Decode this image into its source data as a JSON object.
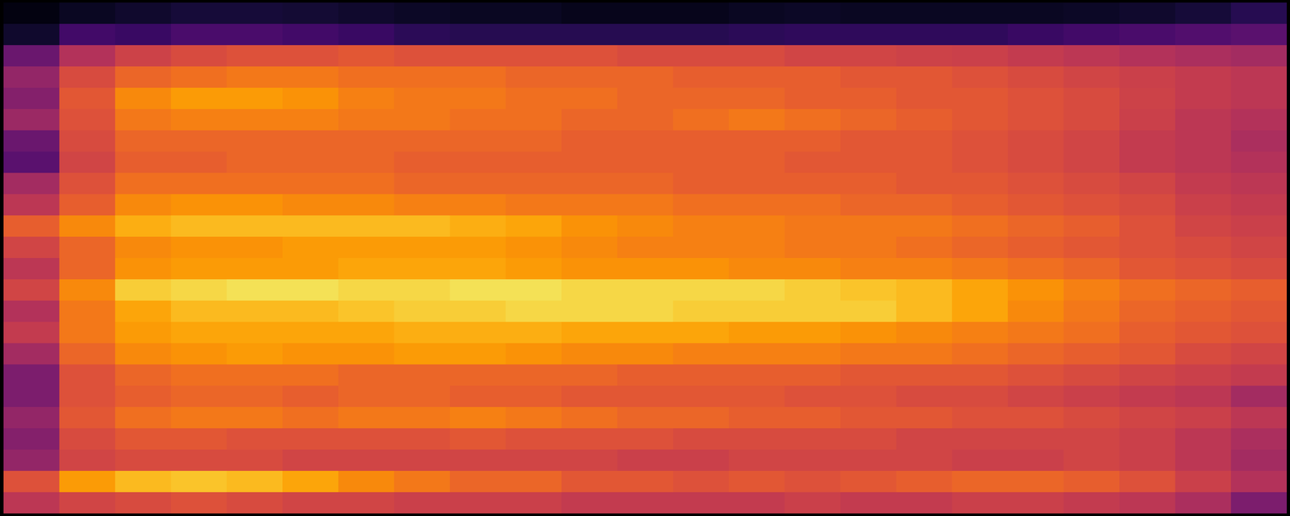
{
  "chart_data": {
    "type": "heatmap",
    "tick_labels": false,
    "zlim": [
      0,
      100
    ],
    "z": [
      [
        3,
        6,
        8,
        10,
        10,
        9,
        8,
        7,
        6,
        6,
        5,
        5,
        5,
        6,
        7,
        6,
        6,
        6,
        6,
        7,
        8,
        10,
        14
      ],
      [
        8,
        20,
        18,
        22,
        22,
        20,
        18,
        15,
        14,
        14,
        14,
        14,
        14,
        15,
        16,
        16,
        16,
        16,
        18,
        20,
        22,
        24,
        26
      ],
      [
        30,
        48,
        55,
        58,
        60,
        60,
        62,
        60,
        60,
        60,
        60,
        58,
        58,
        58,
        56,
        56,
        55,
        54,
        52,
        50,
        48,
        46,
        44
      ],
      [
        40,
        58,
        66,
        68,
        70,
        70,
        68,
        68,
        68,
        66,
        66,
        66,
        64,
        64,
        64,
        62,
        62,
        60,
        58,
        56,
        54,
        52,
        50
      ],
      [
        36,
        62,
        74,
        78,
        78,
        76,
        72,
        70,
        70,
        68,
        68,
        66,
        66,
        66,
        64,
        64,
        62,
        62,
        60,
        58,
        55,
        52,
        50
      ],
      [
        42,
        60,
        70,
        72,
        72,
        72,
        70,
        70,
        68,
        68,
        66,
        66,
        68,
        70,
        68,
        66,
        64,
        62,
        60,
        58,
        54,
        50,
        48
      ],
      [
        30,
        58,
        66,
        66,
        66,
        66,
        66,
        66,
        66,
        66,
        64,
        64,
        64,
        64,
        64,
        62,
        62,
        60,
        58,
        56,
        52,
        50,
        46
      ],
      [
        26,
        56,
        64,
        64,
        66,
        66,
        66,
        64,
        64,
        64,
        64,
        64,
        64,
        64,
        62,
        62,
        62,
        60,
        58,
        56,
        52,
        50,
        48
      ],
      [
        44,
        60,
        68,
        68,
        68,
        68,
        68,
        66,
        66,
        66,
        66,
        66,
        64,
        64,
        64,
        64,
        62,
        62,
        60,
        58,
        56,
        52,
        50
      ],
      [
        50,
        64,
        74,
        76,
        76,
        74,
        74,
        72,
        72,
        70,
        70,
        70,
        68,
        68,
        68,
        66,
        66,
        64,
        62,
        60,
        58,
        54,
        52
      ],
      [
        64,
        74,
        82,
        84,
        84,
        84,
        84,
        84,
        82,
        80,
        76,
        74,
        72,
        72,
        70,
        70,
        70,
        68,
        66,
        64,
        60,
        56,
        54
      ],
      [
        56,
        66,
        74,
        76,
        76,
        78,
        78,
        78,
        78,
        76,
        74,
        72,
        72,
        72,
        70,
        70,
        68,
        66,
        64,
        62,
        60,
        58,
        56
      ],
      [
        50,
        66,
        76,
        78,
        78,
        78,
        80,
        80,
        80,
        78,
        76,
        76,
        76,
        74,
        74,
        72,
        72,
        70,
        68,
        66,
        62,
        60,
        58
      ],
      [
        56,
        74,
        88,
        90,
        92,
        92,
        90,
        90,
        92,
        92,
        90,
        90,
        90,
        90,
        88,
        86,
        84,
        80,
        76,
        72,
        68,
        66,
        64
      ],
      [
        48,
        70,
        80,
        84,
        84,
        84,
        86,
        88,
        88,
        90,
        90,
        90,
        88,
        88,
        88,
        88,
        84,
        80,
        74,
        70,
        66,
        64,
        62
      ],
      [
        52,
        70,
        78,
        80,
        80,
        80,
        80,
        82,
        82,
        82,
        80,
        80,
        80,
        78,
        78,
        76,
        74,
        72,
        70,
        68,
        64,
        62,
        60
      ],
      [
        44,
        66,
        74,
        76,
        78,
        76,
        76,
        78,
        78,
        76,
        74,
        74,
        72,
        72,
        72,
        70,
        70,
        68,
        66,
        64,
        62,
        58,
        56
      ],
      [
        34,
        60,
        66,
        68,
        68,
        68,
        66,
        66,
        66,
        66,
        66,
        64,
        64,
        64,
        64,
        62,
        62,
        62,
        60,
        58,
        56,
        54,
        52
      ],
      [
        34,
        60,
        64,
        66,
        66,
        64,
        66,
        66,
        64,
        64,
        62,
        62,
        62,
        62,
        60,
        60,
        58,
        58,
        56,
        54,
        52,
        50,
        44
      ],
      [
        40,
        62,
        68,
        70,
        70,
        68,
        70,
        70,
        72,
        70,
        68,
        66,
        66,
        64,
        64,
        62,
        62,
        60,
        60,
        58,
        56,
        54,
        50
      ],
      [
        36,
        58,
        62,
        62,
        60,
        60,
        60,
        60,
        62,
        60,
        60,
        60,
        58,
        58,
        58,
        58,
        56,
        56,
        56,
        56,
        54,
        50,
        46
      ],
      [
        40,
        56,
        58,
        58,
        58,
        56,
        56,
        56,
        56,
        56,
        56,
        54,
        54,
        56,
        56,
        56,
        56,
        54,
        54,
        56,
        54,
        50,
        44
      ],
      [
        60,
        78,
        84,
        86,
        84,
        80,
        74,
        70,
        66,
        66,
        62,
        62,
        60,
        62,
        60,
        62,
        64,
        66,
        66,
        64,
        60,
        54,
        48
      ],
      [
        50,
        56,
        58,
        60,
        58,
        56,
        56,
        54,
        54,
        54,
        52,
        52,
        52,
        52,
        54,
        52,
        52,
        54,
        54,
        52,
        50,
        46,
        34
      ]
    ]
  }
}
